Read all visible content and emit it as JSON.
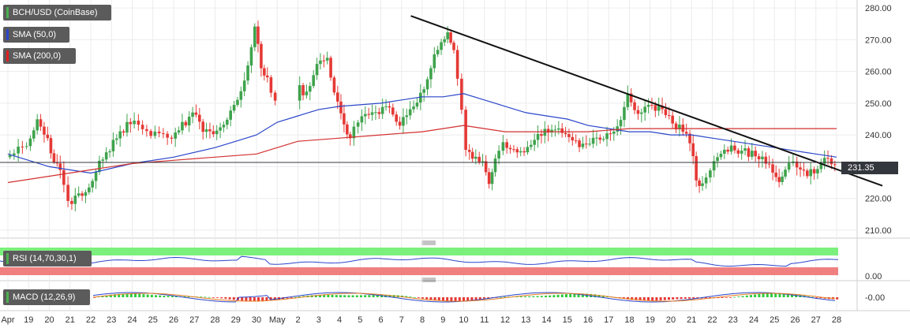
{
  "legends": {
    "main": {
      "label": "BCH/USD (CoinBase)",
      "color": "#4caf50"
    },
    "sma50": {
      "label": "SMA (50,0)",
      "color": "#2b46c9"
    },
    "sma200": {
      "label": "SMA (200,0)",
      "color": "#e02020"
    },
    "rsi": {
      "label": "RSI (14,70,30,1)",
      "color": "#4caf50"
    },
    "macd": {
      "label": "MACD (12,26,9)",
      "color": "#4caf50"
    }
  },
  "price_label": "231.35",
  "rsi_axis_label": "0.00",
  "macd_axis_label": "-0.00",
  "colors": {
    "up": "#3fa34d",
    "down": "#e53935",
    "sma50": "#2b46c9",
    "sma200": "#d32f2f",
    "rsi_overbought": "#7cf07c",
    "rsi_oversold": "#f08080"
  },
  "chart_data": {
    "type": "candlestick",
    "title": "BCH/USD (CoinBase)",
    "y_ticks": [
      "280.00",
      "270.00",
      "260.00",
      "250.00",
      "240.00",
      "230.00",
      "220.00",
      "210.00"
    ],
    "ylim": [
      207.5,
      282.5
    ],
    "x_ticks": [
      "Apr",
      "19",
      "20",
      "21",
      "22",
      "23",
      "24",
      "25",
      "26",
      "27",
      "28",
      "29",
      "30",
      "May",
      "2",
      "3",
      "4",
      "5",
      "6",
      "7",
      "8",
      "9",
      "10",
      "11",
      "12",
      "13",
      "14",
      "15",
      "16",
      "17",
      "18",
      "19",
      "20",
      "21",
      "22",
      "23",
      "24",
      "25",
      "26",
      "27",
      "28"
    ],
    "last_price": 231.35,
    "trendline": {
      "start": [
        "May 7",
        277.5
      ],
      "end": [
        "28",
        227.0
      ]
    },
    "close_path": [
      [
        "Apr 18",
        233
      ],
      [
        "19",
        237
      ],
      [
        "19.5",
        245
      ],
      [
        "20",
        238
      ],
      [
        "20.3",
        232
      ],
      [
        "20.6",
        228
      ],
      [
        "21",
        218
      ],
      [
        "21.5",
        221
      ],
      [
        "22",
        224
      ],
      [
        "22.5",
        232
      ],
      [
        "23",
        236
      ],
      [
        "23.5",
        241
      ],
      [
        "24",
        244
      ],
      [
        "25",
        241
      ],
      [
        "26",
        240
      ],
      [
        "26.5",
        243
      ],
      [
        "27",
        247
      ],
      [
        "27.5",
        242
      ],
      [
        "28",
        240
      ],
      [
        "28.5",
        244
      ],
      [
        "29",
        250
      ],
      [
        "29.5",
        256
      ],
      [
        "30",
        275
      ],
      [
        "30.3",
        262
      ],
      [
        "30.6",
        257
      ],
      [
        "May",
        252
      ],
      [
        "1.5",
        256
      ],
      [
        "2",
        255
      ],
      [
        "2.5",
        253
      ],
      [
        "3",
        262
      ],
      [
        "3.5",
        264
      ],
      [
        "4",
        250
      ],
      [
        "4.3",
        242
      ],
      [
        "4.6",
        240
      ],
      [
        "5",
        245
      ],
      [
        "5.5",
        246
      ],
      [
        "6",
        247
      ],
      [
        "6.5",
        249
      ],
      [
        "7",
        243
      ],
      [
        "7.5",
        247
      ],
      [
        "8",
        252
      ],
      [
        "8.5",
        262
      ],
      [
        "9",
        270
      ],
      [
        "9.3",
        272
      ],
      [
        "9.6",
        268
      ],
      [
        "10",
        248
      ],
      [
        "10.2",
        236
      ],
      [
        "10.5",
        233
      ],
      [
        "11",
        231
      ],
      [
        "11.3",
        225
      ],
      [
        "11.6",
        233
      ],
      [
        "12",
        237
      ],
      [
        "12.5",
        236
      ],
      [
        "13",
        235
      ],
      [
        "13.5",
        238
      ],
      [
        "14",
        241
      ],
      [
        "14.5",
        242
      ],
      [
        "15",
        240
      ],
      [
        "15.5",
        238
      ],
      [
        "16",
        236
      ],
      [
        "16.5",
        239
      ],
      [
        "17",
        240
      ],
      [
        "17.5",
        242
      ],
      [
        "18",
        252
      ],
      [
        "18.5",
        247
      ],
      [
        "19",
        249
      ],
      [
        "19.5",
        248
      ],
      [
        "20",
        245
      ],
      [
        "20.5",
        242
      ],
      [
        "21",
        238
      ],
      [
        "21.3",
        226
      ],
      [
        "21.6",
        224
      ],
      [
        "22",
        230
      ],
      [
        "22.5",
        235
      ],
      [
        "23",
        236
      ],
      [
        "23.5",
        235
      ],
      [
        "24",
        234
      ],
      [
        "24.5",
        233
      ],
      [
        "25",
        228
      ],
      [
        "25.3",
        224
      ],
      [
        "25.6",
        230
      ],
      [
        "26",
        231
      ],
      [
        "26.5",
        228
      ],
      [
        "27",
        229
      ],
      [
        "27.5",
        232
      ],
      [
        "28",
        231.35
      ]
    ],
    "series": [
      {
        "name": "SMA (50,0)",
        "values": [
          [
            "Apr 18",
            234
          ],
          [
            "20",
            230
          ],
          [
            "22",
            228
          ],
          [
            "24",
            231
          ],
          [
            "26",
            233
          ],
          [
            "28",
            236
          ],
          [
            "29",
            238
          ],
          [
            "30",
            240
          ],
          [
            "May",
            244
          ],
          [
            "2",
            246
          ],
          [
            "3",
            248
          ],
          [
            "4",
            249
          ],
          [
            "6",
            250
          ],
          [
            "7",
            251
          ],
          [
            "8",
            252
          ],
          [
            "9",
            252
          ],
          [
            "10",
            253
          ],
          [
            "11",
            251
          ],
          [
            "12",
            249
          ],
          [
            "13",
            247
          ],
          [
            "14",
            246
          ],
          [
            "15",
            245
          ],
          [
            "16",
            243
          ],
          [
            "17",
            242
          ],
          [
            "18",
            241
          ],
          [
            "19",
            241
          ],
          [
            "20",
            240
          ],
          [
            "21",
            240
          ],
          [
            "22",
            239
          ],
          [
            "23",
            238
          ],
          [
            "24",
            237
          ],
          [
            "25",
            236
          ],
          [
            "26",
            235
          ],
          [
            "27",
            234
          ],
          [
            "28",
            233
          ]
        ]
      },
      {
        "name": "SMA (200,0)",
        "values": [
          [
            "Apr 18",
            225
          ],
          [
            "20",
            227
          ],
          [
            "22",
            229
          ],
          [
            "24",
            231
          ],
          [
            "26",
            232
          ],
          [
            "28",
            233
          ],
          [
            "30",
            234
          ],
          [
            "May",
            236
          ],
          [
            "2",
            238
          ],
          [
            "4",
            239
          ],
          [
            "6",
            240
          ],
          [
            "8",
            241
          ],
          [
            "9",
            242
          ],
          [
            "10",
            243
          ],
          [
            "11",
            242
          ],
          [
            "12",
            241
          ],
          [
            "14",
            241
          ],
          [
            "16",
            241
          ],
          [
            "18",
            242
          ],
          [
            "20",
            242
          ],
          [
            "22",
            242
          ],
          [
            "24",
            242
          ],
          [
            "26",
            242
          ],
          [
            "28",
            242
          ]
        ]
      }
    ]
  }
}
